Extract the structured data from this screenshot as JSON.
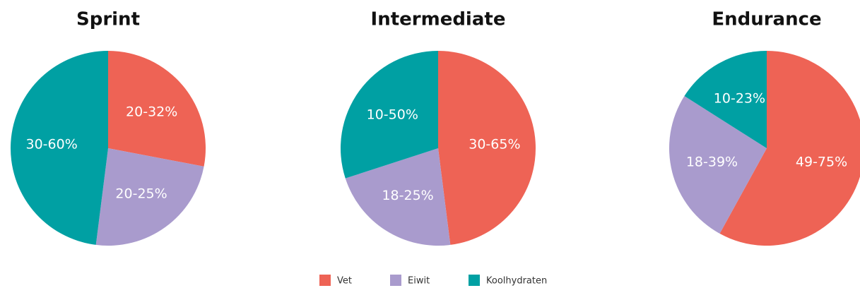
{
  "chart_data": [
    {
      "type": "pie",
      "title": "Sprint",
      "categories": [
        "Vet",
        "Eiwit",
        "Koolhydraten"
      ],
      "values": [
        28,
        24,
        48
      ],
      "slice_labels": [
        "20-32%",
        "20-25%",
        "30-60%"
      ],
      "colors": [
        "#ee6355",
        "#a99bcd",
        "#00a0a3"
      ]
    },
    {
      "type": "pie",
      "title": "Intermediate",
      "categories": [
        "Vet",
        "Eiwit",
        "Koolhydraten"
      ],
      "values": [
        48,
        22,
        30
      ],
      "slice_labels": [
        "30-65%",
        "18-25%",
        "10-50%"
      ],
      "colors": [
        "#ee6355",
        "#a99bcd",
        "#00a0a3"
      ]
    },
    {
      "type": "pie",
      "title": "Endurance",
      "categories": [
        "Vet",
        "Eiwit",
        "Koolhydraten"
      ],
      "values": [
        58,
        26,
        16
      ],
      "slice_labels": [
        "49-75%",
        "18-39%",
        "10-23%"
      ],
      "colors": [
        "#ee6355",
        "#a99bcd",
        "#00a0a3"
      ]
    }
  ]
}
